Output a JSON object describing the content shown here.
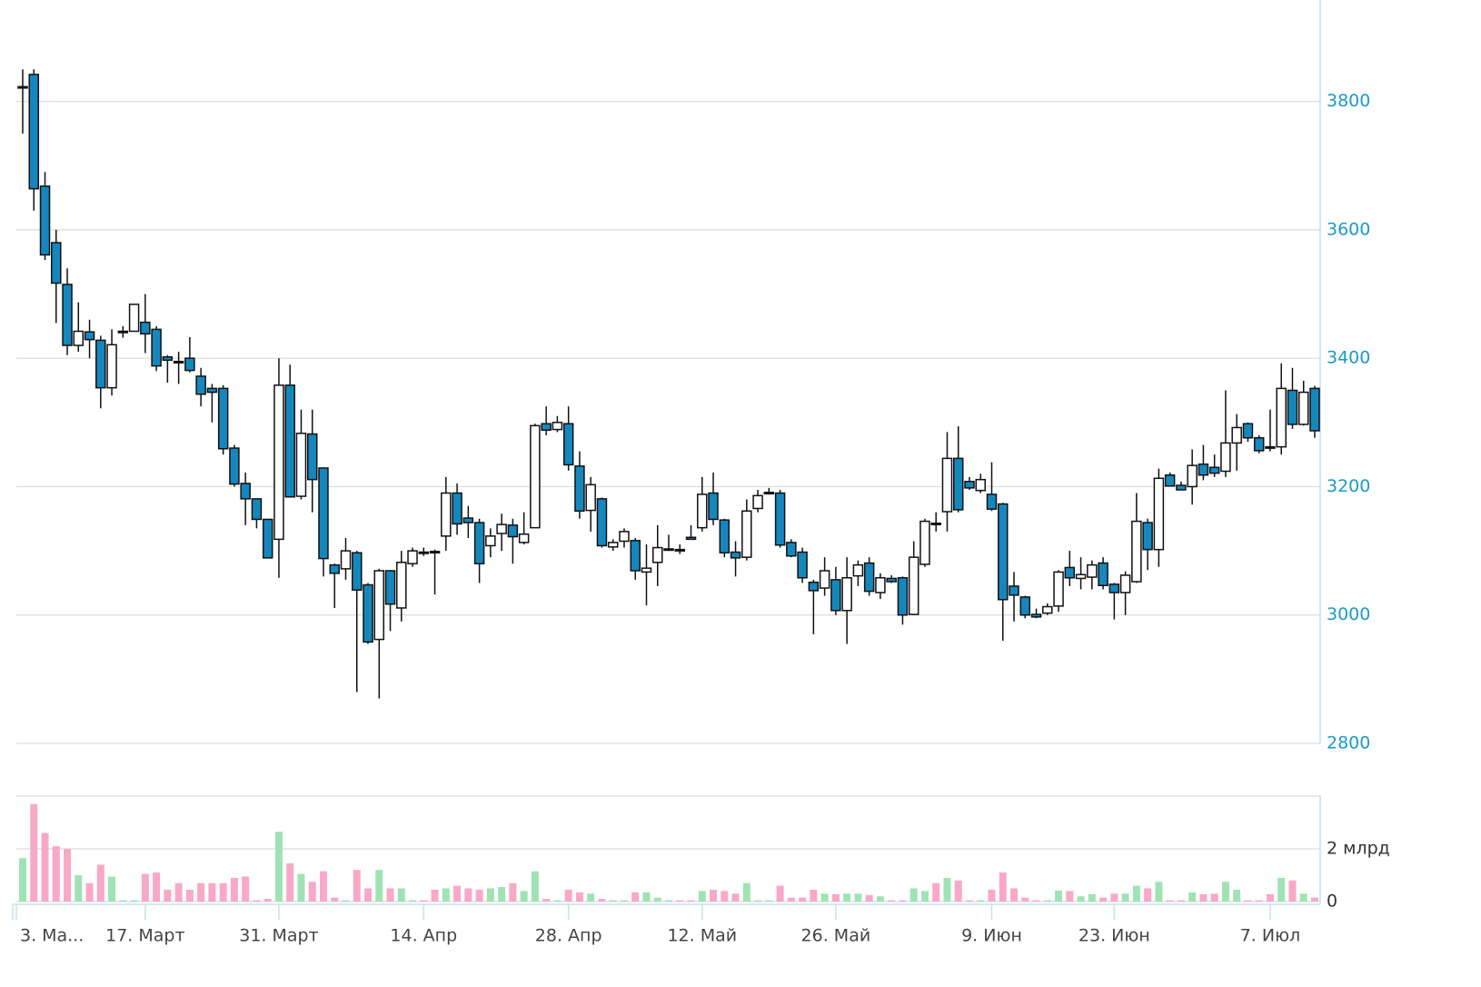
{
  "chart_data": [
    {
      "type": "candlestick",
      "categories": [
        "3. Ма...",
        null,
        null,
        null,
        null,
        null,
        null,
        null,
        null,
        null,
        null,
        "17. Март",
        null,
        null,
        null,
        null,
        null,
        null,
        null,
        null,
        null,
        null,
        null,
        "31. Март",
        null,
        null,
        null,
        null,
        null,
        null,
        null,
        null,
        null,
        null,
        null,
        null,
        "14. Апр",
        null,
        null,
        null,
        null,
        null,
        null,
        null,
        null,
        null,
        null,
        null,
        null,
        "28. Апр",
        null,
        null,
        null,
        null,
        null,
        null,
        null,
        null,
        null,
        null,
        null,
        "12. Май",
        null,
        null,
        null,
        null,
        null,
        null,
        null,
        null,
        null,
        null,
        null,
        "26. Май",
        null,
        null,
        null,
        null,
        null,
        null,
        null,
        null,
        null,
        null,
        null,
        null,
        null,
        "9. Июн",
        null,
        null,
        null,
        null,
        null,
        null,
        null,
        null,
        null,
        null,
        "23. Июн",
        null,
        null,
        null,
        null,
        null,
        null,
        null,
        null,
        null,
        null,
        null,
        null,
        null,
        "7. Июл",
        null,
        null,
        null,
        null
      ],
      "open": [
        3822,
        3842,
        3668,
        3580,
        3515,
        3420,
        3441,
        3428,
        3354,
        3440,
        3442,
        3456,
        3445,
        3402,
        3395,
        3400,
        3372,
        3353,
        3353,
        3260,
        3205,
        3181,
        3149,
        3118,
        3358,
        3185,
        3282,
        3229,
        3078,
        3072,
        3097,
        3047,
        2962,
        3069,
        3011,
        3080,
        3098,
        3099,
        3123,
        3190,
        3151,
        3144,
        3108,
        3127,
        3140,
        3113,
        3136,
        3298,
        3289,
        3298,
        3232,
        3163,
        3181,
        3106,
        3115,
        3116,
        3067,
        3082,
        3103,
        3102,
        3121,
        3136,
        3190,
        3148,
        3098,
        3090,
        3166,
        3190,
        3190,
        3113,
        3098,
        3051,
        3042,
        3055,
        3007,
        3061,
        3081,
        3035,
        3057,
        3058,
        3001,
        3079,
        3143,
        3161,
        3244,
        3208,
        3194,
        3188,
        3173,
        3045,
        3028,
        3001,
        3003,
        3014,
        3074,
        3057,
        3059,
        3081,
        3048,
        3035,
        3052,
        3144,
        3102,
        3218,
        3202,
        3200,
        3235,
        3230,
        3224,
        3268,
        3298,
        3276,
        3262,
        3262,
        3350,
        3297,
        3353
      ],
      "high": [
        3850,
        3850,
        3690,
        3600,
        3540,
        3487,
        3460,
        3435,
        3445,
        3450,
        3484,
        3500,
        3450,
        3405,
        3410,
        3433,
        3385,
        3360,
        3358,
        3265,
        3222,
        3181,
        3150,
        3400,
        3390,
        3320,
        3320,
        3230,
        3080,
        3120,
        3100,
        3050,
        3072,
        3070,
        3100,
        3105,
        3105,
        3102,
        3215,
        3205,
        3170,
        3150,
        3135,
        3158,
        3150,
        3160,
        3298,
        3325,
        3310,
        3325,
        3255,
        3215,
        3183,
        3118,
        3135,
        3120,
        3110,
        3140,
        3125,
        3110,
        3140,
        3215,
        3222,
        3150,
        3115,
        3180,
        3195,
        3198,
        3195,
        3118,
        3105,
        3055,
        3090,
        3075,
        3090,
        3085,
        3090,
        3065,
        3062,
        3060,
        3115,
        3150,
        3160,
        3285,
        3294,
        3215,
        3220,
        3238,
        3175,
        3067,
        3030,
        3010,
        3018,
        3070,
        3100,
        3090,
        3085,
        3090,
        3050,
        3068,
        3190,
        3150,
        3228,
        3222,
        3208,
        3258,
        3265,
        3250,
        3350,
        3313,
        3300,
        3280,
        3320,
        3392,
        3385,
        3365,
        3357
      ],
      "low": [
        3750,
        3630,
        3553,
        3455,
        3405,
        3410,
        3400,
        3322,
        3342,
        3432,
        3442,
        3408,
        3380,
        3362,
        3360,
        3378,
        3325,
        3300,
        3250,
        3200,
        3140,
        3135,
        3088,
        3058,
        3184,
        3180,
        3160,
        3060,
        3011,
        3055,
        2880,
        2955,
        2870,
        2975,
        2990,
        3075,
        3092,
        3032,
        3100,
        3125,
        3120,
        3050,
        3090,
        3100,
        3080,
        3110,
        3136,
        3280,
        3285,
        3225,
        3150,
        3130,
        3105,
        3100,
        3105,
        3055,
        3015,
        3045,
        3100,
        3095,
        3118,
        3130,
        3140,
        3090,
        3060,
        3085,
        3160,
        3188,
        3105,
        3090,
        3050,
        2970,
        3030,
        3000,
        2955,
        3045,
        3030,
        3025,
        3050,
        2985,
        3000,
        3075,
        3130,
        3130,
        3160,
        3195,
        3190,
        3162,
        2960,
        2990,
        2995,
        2995,
        3000,
        3005,
        3045,
        3040,
        3040,
        3040,
        2993,
        3000,
        3050,
        3070,
        3075,
        3200,
        3195,
        3172,
        3210,
        3215,
        3215,
        3225,
        3270,
        3252,
        3255,
        3250,
        3290,
        3295,
        3276
      ],
      "close": [
        3823,
        3664,
        3561,
        3517,
        3420,
        3442,
        3429,
        3354,
        3421,
        3442,
        3484,
        3438,
        3388,
        3397,
        3394,
        3381,
        3344,
        3347,
        3259,
        3204,
        3181,
        3149,
        3089,
        3358,
        3184,
        3283,
        3211,
        3088,
        3065,
        3100,
        3039,
        2958,
        3069,
        3017,
        3082,
        3100,
        3096,
        3098,
        3190,
        3142,
        3144,
        3080,
        3123,
        3141,
        3122,
        3126,
        3295,
        3288,
        3300,
        3234,
        3162,
        3203,
        3108,
        3113,
        3130,
        3069,
        3073,
        3105,
        3103,
        3100,
        3118,
        3188,
        3149,
        3097,
        3089,
        3162,
        3186,
        3191,
        3109,
        3092,
        3058,
        3038,
        3069,
        3007,
        3058,
        3078,
        3037,
        3058,
        3052,
        3000,
        3090,
        3146,
        3141,
        3244,
        3164,
        3198,
        3211,
        3165,
        3024,
        3031,
        3000,
        2997,
        3013,
        3067,
        3058,
        3063,
        3078,
        3046,
        3035,
        3062,
        3146,
        3102,
        3213,
        3201,
        3195,
        3233,
        3218,
        3221,
        3268,
        3292,
        3276,
        3256,
        3260,
        3353,
        3297,
        3347,
        3287
      ],
      "up_color": "#ffffff",
      "down_color": "#1587bd",
      "ylim": [
        2800,
        3958
      ],
      "yticks": [
        2800,
        3000,
        3200,
        3400,
        3600,
        3800
      ],
      "grid": true
    },
    {
      "type": "bar",
      "values": [
        1.65,
        3.7,
        2.6,
        2.1,
        2.0,
        1.0,
        0.7,
        1.4,
        0.95,
        0.05,
        0.05,
        1.05,
        1.1,
        0.45,
        0.7,
        0.45,
        0.7,
        0.7,
        0.7,
        0.9,
        0.95,
        0.05,
        0.1,
        2.65,
        1.45,
        1.05,
        0.75,
        1.15,
        0.15,
        0.05,
        1.2,
        0.5,
        1.2,
        0.5,
        0.5,
        0.05,
        0.05,
        0.45,
        0.5,
        0.6,
        0.5,
        0.45,
        0.5,
        0.55,
        0.7,
        0.4,
        1.15,
        0.1,
        0.05,
        0.45,
        0.35,
        0.3,
        0.1,
        0.05,
        0.05,
        0.35,
        0.35,
        0.15,
        0.05,
        0.05,
        0.05,
        0.4,
        0.45,
        0.4,
        0.3,
        0.7,
        0.05,
        0.05,
        0.6,
        0.15,
        0.15,
        0.45,
        0.3,
        0.28,
        0.3,
        0.3,
        0.25,
        0.2,
        0.05,
        0.05,
        0.5,
        0.4,
        0.7,
        0.9,
        0.8,
        0.05,
        0.05,
        0.45,
        1.1,
        0.5,
        0.15,
        0.05,
        0.05,
        0.42,
        0.4,
        0.2,
        0.28,
        0.15,
        0.3,
        0.3,
        0.6,
        0.5,
        0.75,
        0.05,
        0.05,
        0.35,
        0.28,
        0.3,
        0.75,
        0.45,
        0.05,
        0.05,
        0.28,
        0.9,
        0.8,
        0.3,
        0.15
      ],
      "up_color": "#9fe3b5",
      "down_color": "#f8a9c7",
      "ylim": [
        0,
        4
      ],
      "yticks": [
        0,
        {
          "value": 2,
          "label": "2 млрд"
        }
      ],
      "grid": true
    }
  ]
}
